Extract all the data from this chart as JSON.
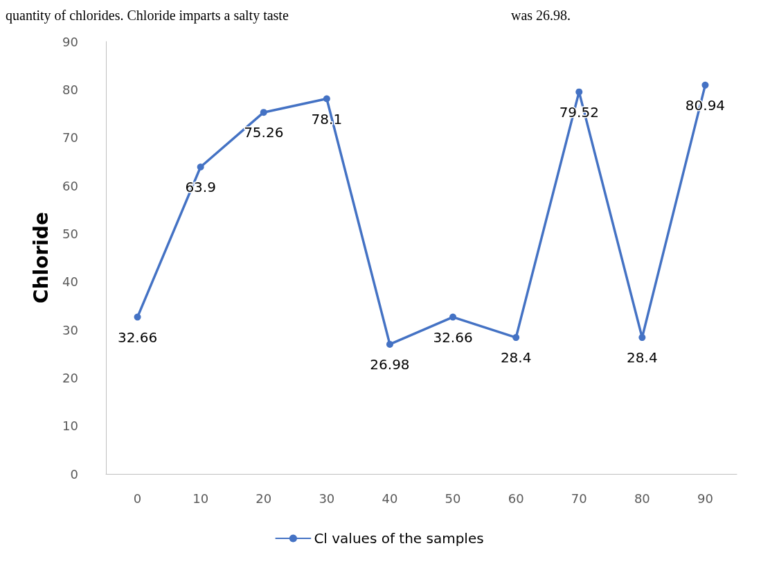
{
  "chart_data": {
    "type": "line",
    "ylabel": "Chloride",
    "categories": [
      "0",
      "10",
      "20",
      "30",
      "40",
      "50",
      "60",
      "70",
      "80",
      "90"
    ],
    "series": [
      {
        "name": "Cl values of the samples",
        "color": "#4472c4",
        "values": [
          32.66,
          63.9,
          75.26,
          78.1,
          26.98,
          32.66,
          28.4,
          79.52,
          28.4,
          80.94
        ]
      }
    ],
    "ylim": [
      0,
      90
    ],
    "yticks": [
      0,
      10,
      20,
      30,
      40,
      50,
      60,
      70,
      80,
      90
    ],
    "grid": false,
    "legend": "bottom",
    "marker": "circle",
    "line_style": "solid",
    "data_labels": true,
    "annotations": [
      "quantity of chlorides. Chloride imparts a salty taste",
      "was 26.98."
    ]
  }
}
